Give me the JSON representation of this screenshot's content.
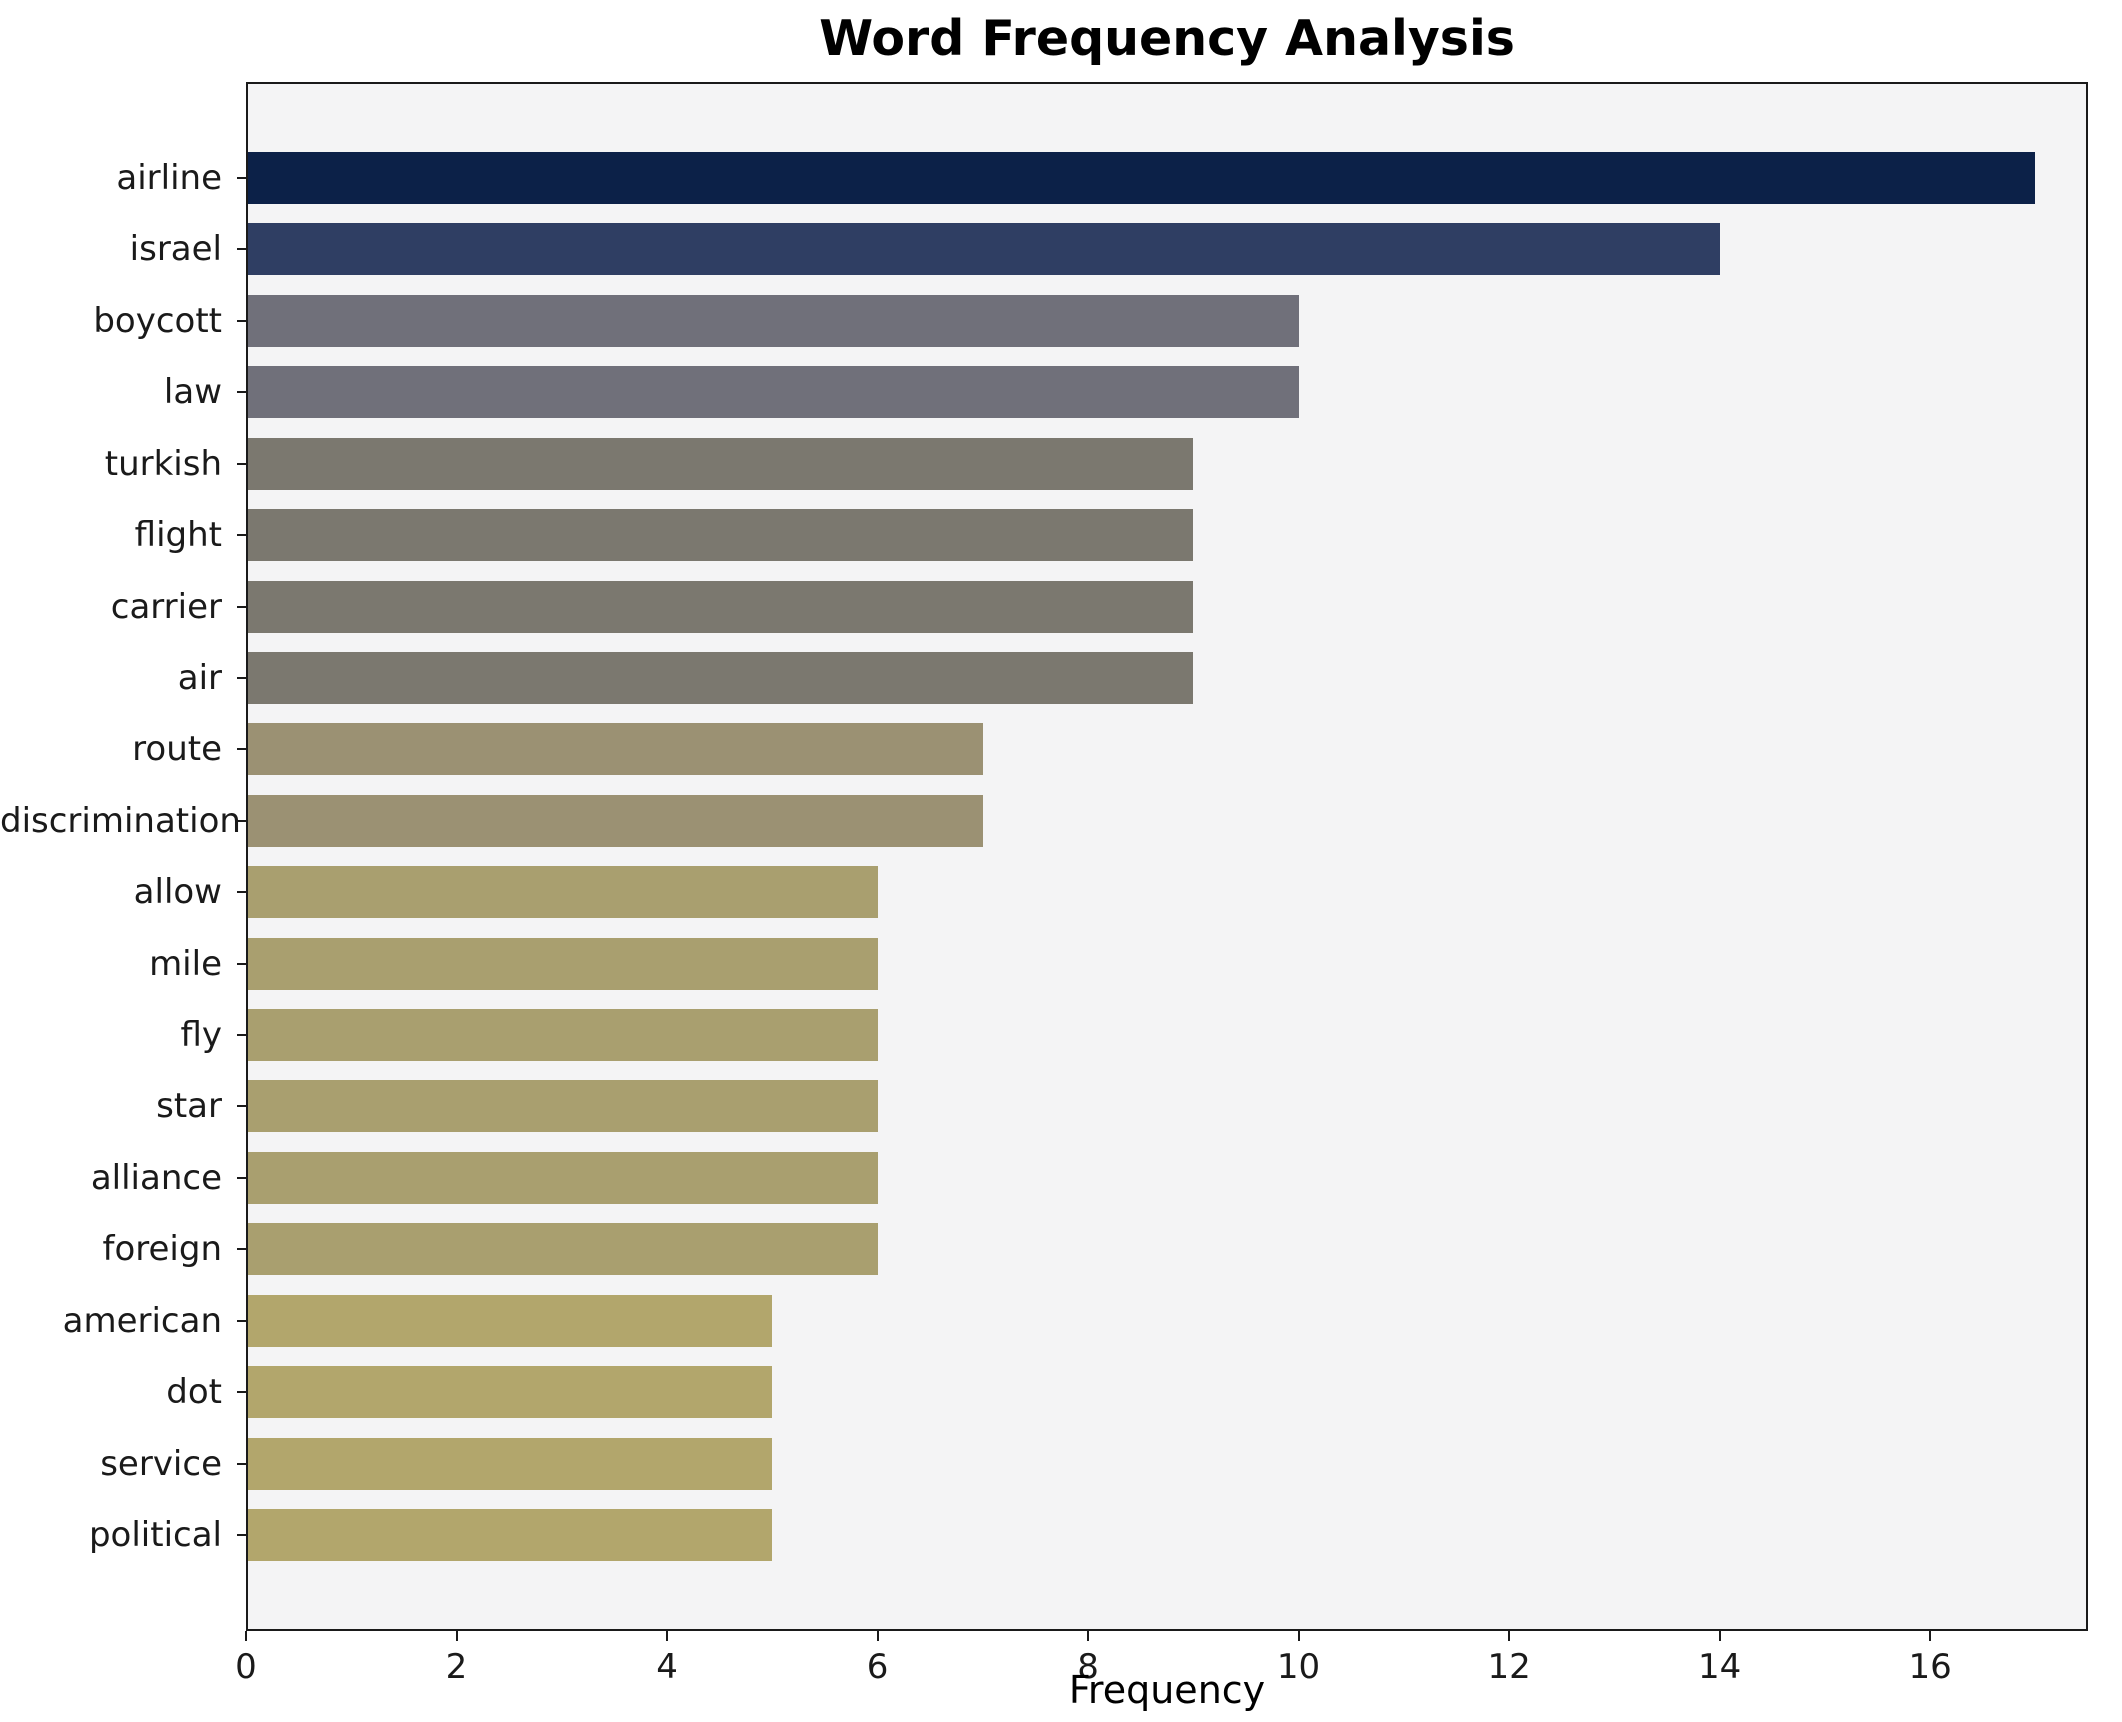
{
  "chart_data": {
    "type": "bar",
    "orientation": "horizontal",
    "title": "Word Frequency Analysis",
    "xlabel": "Frequency",
    "ylabel": "",
    "categories": [
      "airline",
      "israel",
      "boycott",
      "law",
      "turkish",
      "flight",
      "carrier",
      "air",
      "route",
      "discrimination",
      "allow",
      "mile",
      "fly",
      "star",
      "alliance",
      "foreign",
      "american",
      "dot",
      "service",
      "political"
    ],
    "values": [
      17,
      14,
      10,
      10,
      9,
      9,
      9,
      9,
      7,
      7,
      6,
      6,
      6,
      6,
      6,
      6,
      5,
      5,
      5,
      5
    ],
    "bar_colors": [
      "#0c2148",
      "#2f3e63",
      "#70707a",
      "#70707a",
      "#7b786f",
      "#7b786f",
      "#7b786f",
      "#7b786f",
      "#9b9173",
      "#9b9173",
      "#a99f6f",
      "#a99f6f",
      "#a99f6f",
      "#a99f6f",
      "#a99f6f",
      "#a99f6f",
      "#b2a66c",
      "#b2a66c",
      "#b2a66c",
      "#b2a66c"
    ],
    "xlim": [
      0,
      17.5
    ],
    "xticks": [
      0,
      2,
      4,
      6,
      8,
      10,
      12,
      14,
      16
    ],
    "grid": false,
    "legend": "none",
    "plot_background": "#f4f4f5",
    "figure_background": "#ffffff"
  }
}
